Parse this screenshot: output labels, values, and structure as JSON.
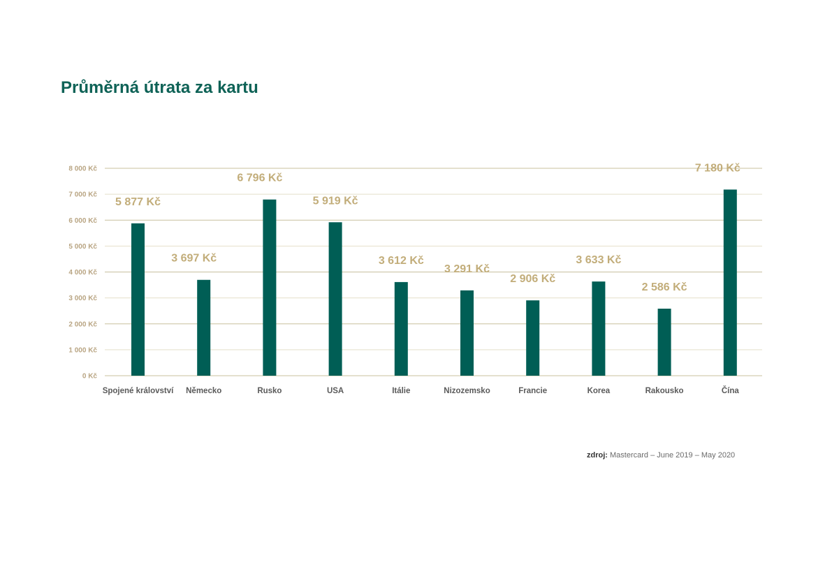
{
  "page": {
    "title": "Průměrná útrata za kartu"
  },
  "source": {
    "label": "zdroj:",
    "text": "Mastercard – June 2019 – May 2020"
  },
  "colors": {
    "bar": "#005e55",
    "value_label": "#c2ad7a",
    "grid_major": "#c8c09e",
    "grid_minor": "#e4dfca",
    "tick": "#b9a583"
  },
  "chart_data": {
    "type": "bar",
    "title": "Průměrná útrata za kartu",
    "xlabel": "",
    "ylabel": "",
    "ylim": [
      0,
      8000
    ],
    "y_ticks": [
      0,
      1000,
      2000,
      3000,
      4000,
      5000,
      6000,
      7000,
      8000
    ],
    "y_tick_labels": [
      "0 Kč",
      "1 000 Kč",
      "2 000 Kč",
      "3 000 Kč",
      "4 000 Kč",
      "5 000 Kč",
      "6 000 Kč",
      "7 000 Kč",
      "8 000 Kč"
    ],
    "categories": [
      "Spojené království",
      "Německo",
      "Rusko",
      "USA",
      "Itálie",
      "Nizozemsko",
      "Francie",
      "Korea",
      "Rakousko",
      "Čína"
    ],
    "values": [
      5877,
      3697,
      6796,
      5919,
      3612,
      3291,
      2906,
      3633,
      2586,
      7180
    ],
    "data_labels": [
      "5 877 Kč",
      "3 697 Kč",
      "6 796 Kč",
      "5 919 Kč",
      "3 612 Kč",
      "3 291 Kč",
      "2 906 Kč",
      "3 633 Kč",
      "2 586 Kč",
      "7 180 Kč"
    ],
    "grid": true,
    "legend": "none"
  }
}
